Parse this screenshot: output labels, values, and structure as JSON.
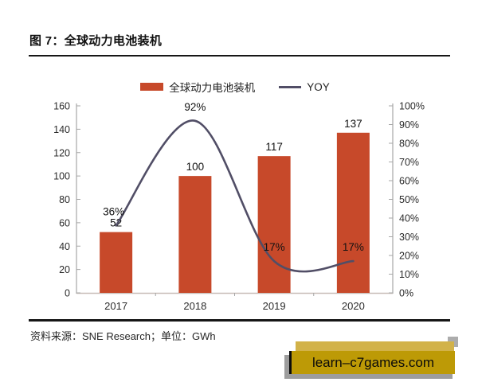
{
  "header": {
    "title": "图 7：全球动力电池装机"
  },
  "legend": {
    "bar_label": "全球动力电池装机",
    "line_label": "YOY"
  },
  "footer": {
    "source_note": "资料来源：SNE Research；单位：GWh",
    "watermark": "learn–c7games.com"
  },
  "colors": {
    "bar": "#C7492A",
    "line": "#514E66",
    "axis": "#A6A6A6",
    "baseline": "#C8BDB7",
    "tick_text": "#2B2B2B",
    "label_text": "#111111",
    "watermark_gold": "#BD9A06",
    "watermark_gold_light": "#D2B249",
    "watermark_shadow": "#9D9D9D",
    "watermark_square": "#ACACAC"
  },
  "chart_data": {
    "type": "bar+line combo",
    "title": "全球动力电池装机",
    "categories": [
      "2017",
      "2018",
      "2019",
      "2020"
    ],
    "series": [
      {
        "name": "全球动力电池装机",
        "type": "bar",
        "axis": "left",
        "unit": "GWh",
        "values": [
          52,
          100,
          117,
          137
        ],
        "labels": [
          "52",
          "100",
          "117",
          "137"
        ],
        "color": "#C7492A"
      },
      {
        "name": "YOY",
        "type": "line",
        "axis": "right",
        "unit": "%",
        "values": [
          36,
          92,
          17,
          17
        ],
        "labels": [
          "36%",
          "92%",
          "17%",
          "17%"
        ],
        "color": "#514E66",
        "smooth": true
      }
    ],
    "left_axis": {
      "min": 0,
      "max": 160,
      "step": 20
    },
    "right_axis": {
      "min": 0,
      "max": 100,
      "step": 10,
      "suffix": "%"
    },
    "grid": false,
    "legend_position": "top"
  }
}
